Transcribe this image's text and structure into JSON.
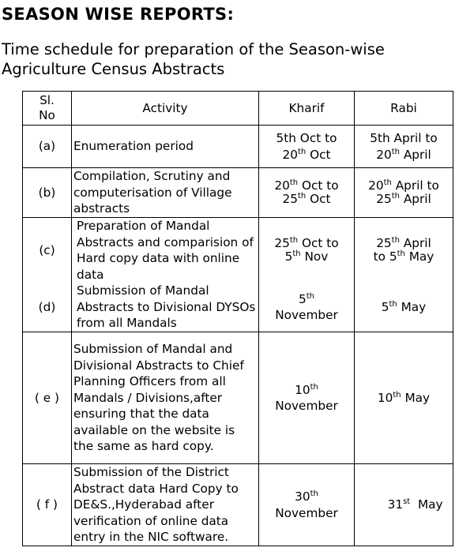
{
  "title": "SEASON WISE REPORTS:",
  "subtitle": "Time schedule for preparation of the Season-wise Agriculture Census Abstracts",
  "table": {
    "headers": {
      "sl_line1": "Sl.",
      "sl_line2": "No",
      "activity": "Activity",
      "kharif": "Kharif",
      "rabi": "Rabi"
    },
    "rows": [
      {
        "sl": "(a)",
        "activity": "Enumeration period",
        "kharif": {
          "l1_a": "5th Oct to",
          "l2_num": "20",
          "l2_sup": "th",
          "l2_text": " Oct"
        },
        "rabi": {
          "l1_a": "5th April to",
          "l2_num": "20",
          "l2_sup": "th",
          "l2_text": " April"
        }
      },
      {
        "sl": "(b)",
        "activity": "Compilation, Scrutiny and computerisation of Village abstracts",
        "kharif": {
          "l1_num": "20",
          "l1_sup": "th",
          "l1_text": " Oct to",
          "l2_num": "25",
          "l2_sup": "th",
          "l2_text": " Oct"
        },
        "rabi": {
          "l1_num": "20",
          "l1_sup": "th",
          "l1_text": " April to",
          "l2_num": "25",
          "l2_sup": "th",
          "l2_text": " April"
        }
      },
      {
        "sl": "(c)",
        "activity": "Preparation of Mandal Abstracts and comparision of Hard copy data with online data",
        "kharif": {
          "l1_num": "25",
          "l1_sup": "th",
          "l1_text": " Oct to",
          "l2_num": "5",
          "l2_sup": "th",
          "l2_text": " Nov"
        },
        "rabi": {
          "l1_num": "25",
          "l1_sup": "th",
          "l1_text": " April",
          "l2_pre": "to ",
          "l2_num": "5",
          "l2_sup": "th",
          "l2_text": " May"
        }
      },
      {
        "sl": "(d)",
        "activity": "Submission of Mandal Abstracts to Divisional DYSOs from all Mandals",
        "kharif": {
          "l1_num": "5",
          "l1_sup": "th",
          "l2_text": "November"
        },
        "rabi": {
          "l1_num": "5",
          "l1_sup": "th",
          "l1_text": " May"
        }
      },
      {
        "sl": "( e )",
        "activity": "Submission of Mandal and Divisional Abstracts to Chief Planning Officers from all Mandals / Divisions,after ensuring that the data available on the website is the same as hard copy.",
        "kharif": {
          "l1_num": "10",
          "l1_sup": "th",
          "l2_text": "November"
        },
        "rabi": {
          "l1_num": "10",
          "l1_sup": "th",
          "l1_text": " May"
        }
      },
      {
        "sl": "( f )",
        "activity": "Submission of the District Abstract data Hard Copy to DE&S.,Hyderabad after verification of  online data entry in the NIC software.",
        "kharif": {
          "l1_num": "30",
          "l1_sup": "th",
          "l2_text": "November"
        },
        "rabi": {
          "l1_num": "31",
          "l1_sup": "st",
          "l1_text": "  May"
        }
      }
    ]
  }
}
